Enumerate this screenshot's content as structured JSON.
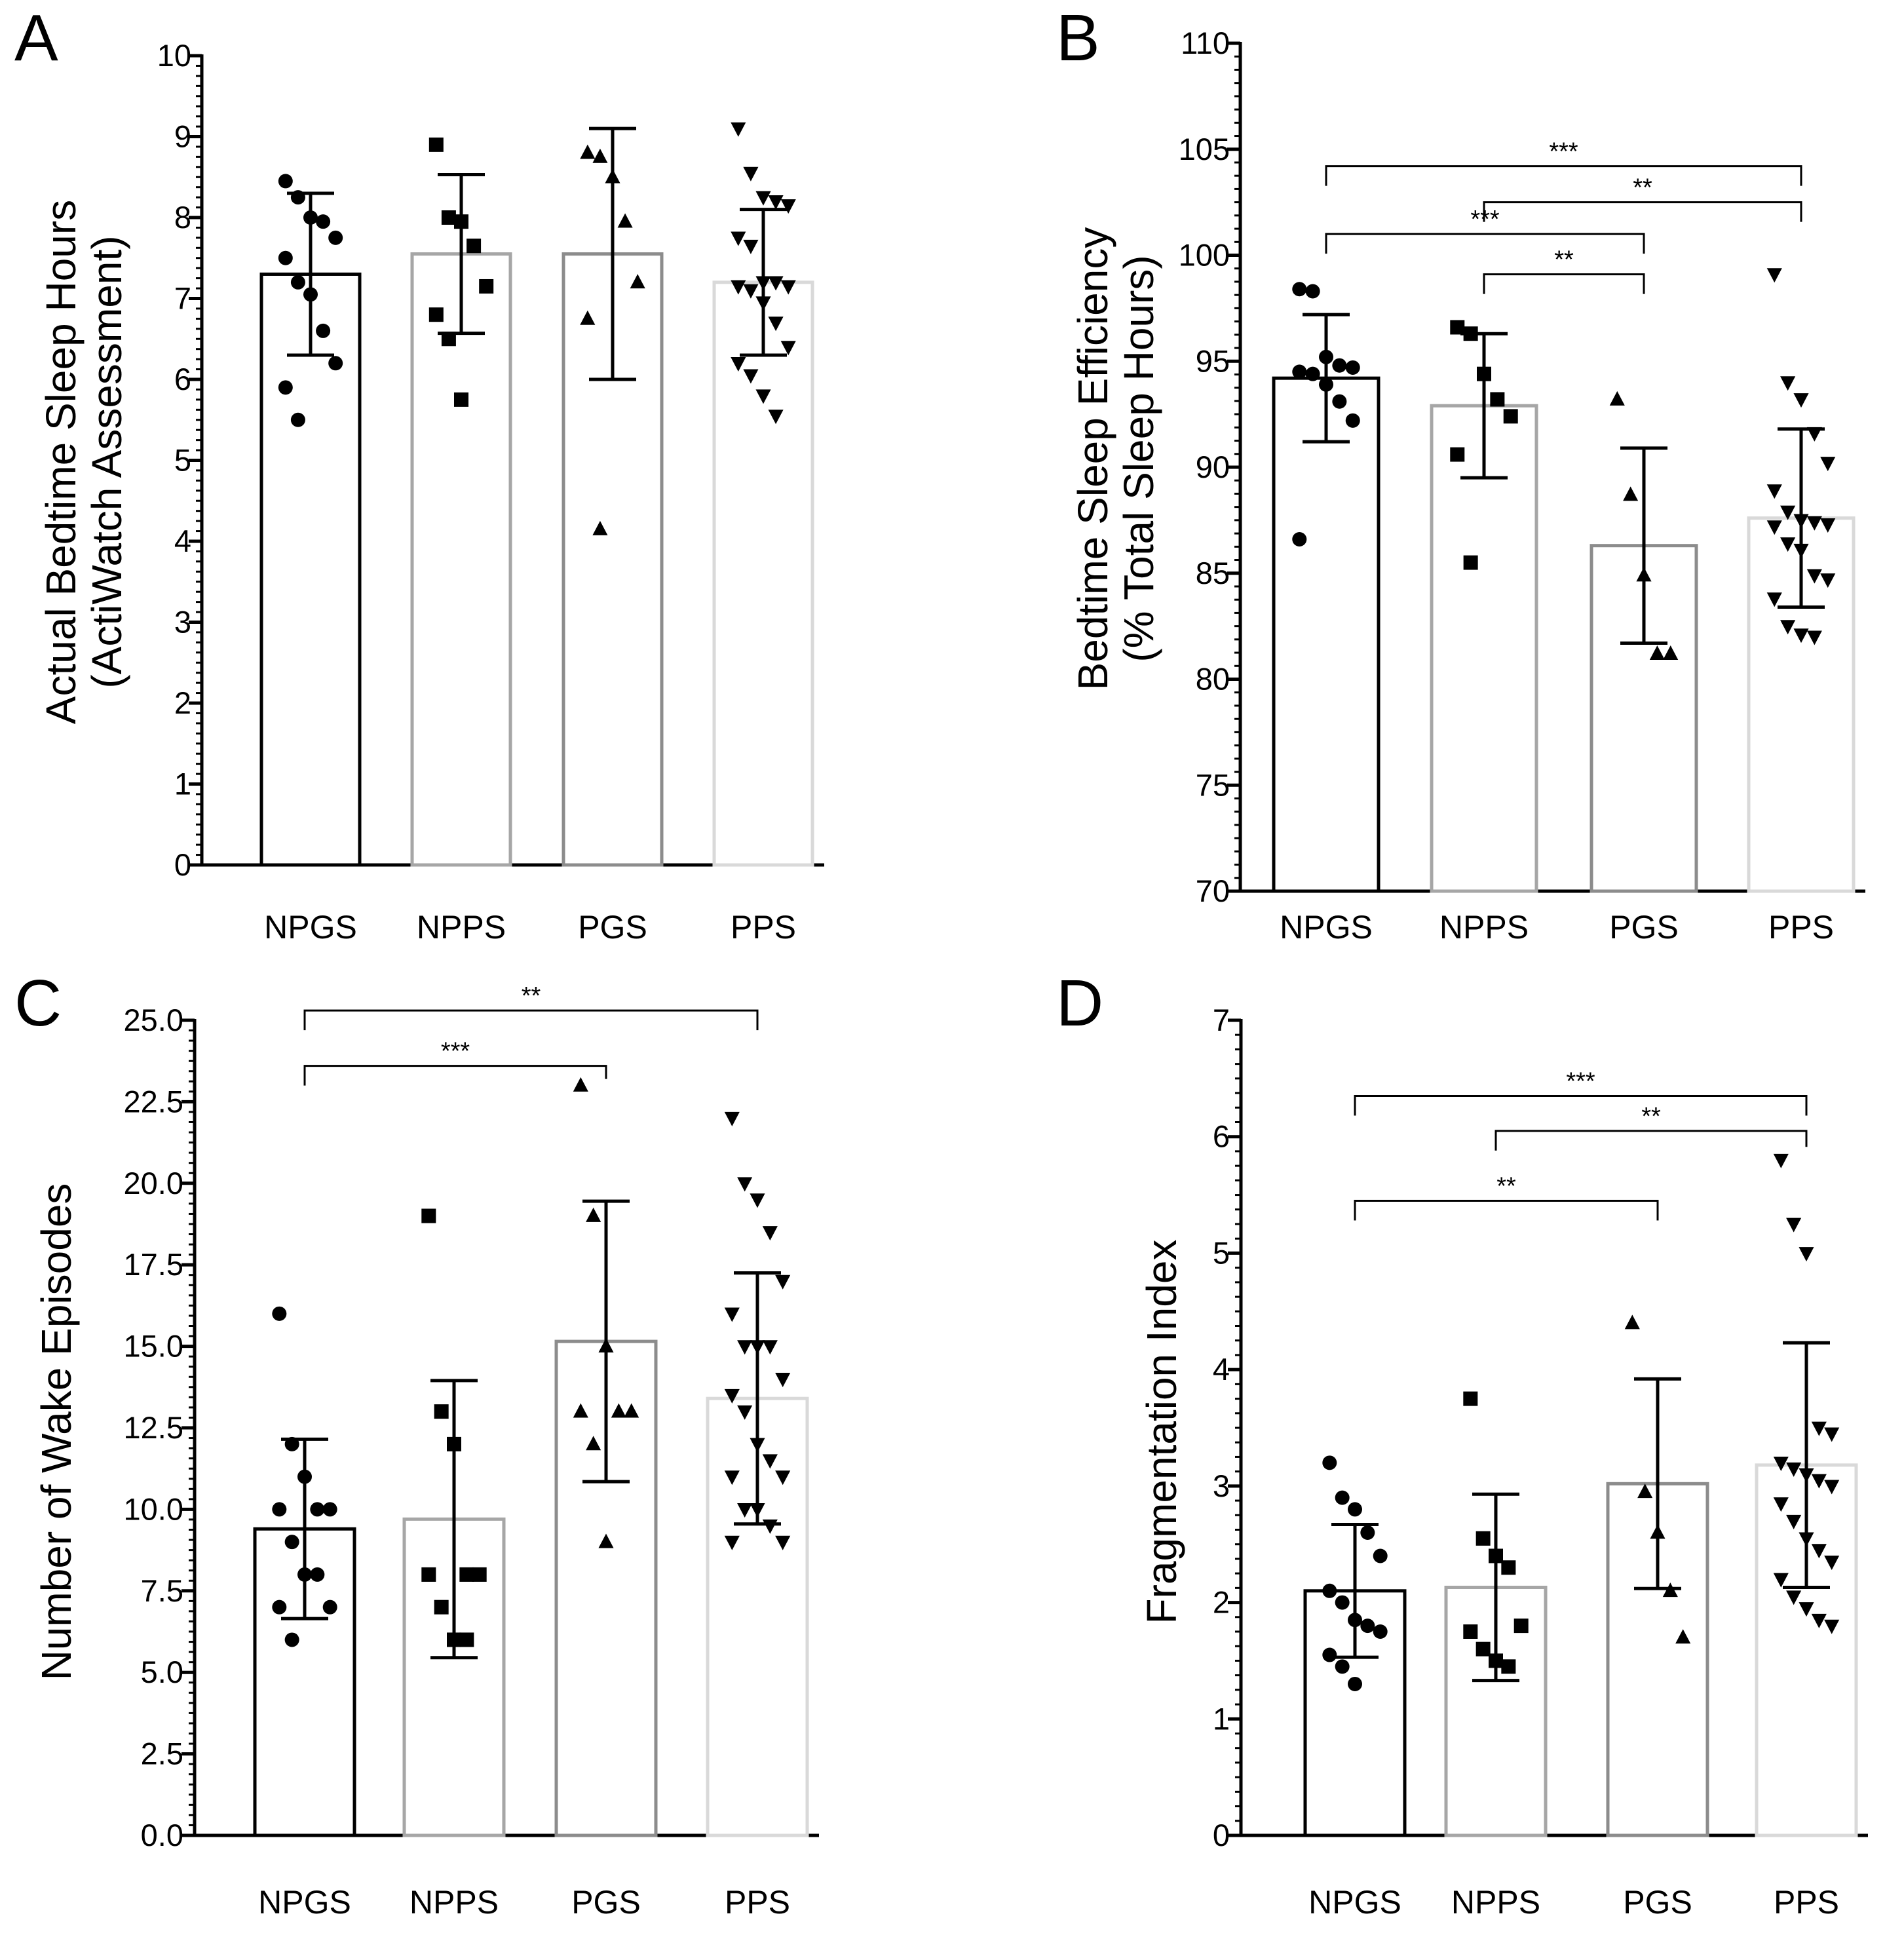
{
  "figure": {
    "groups": [
      "NPGS",
      "NPPS",
      "PGS",
      "PPS"
    ],
    "colors": {
      "NPGS": "#000000",
      "NPPS": "#a6a6a6",
      "PGS": "#8c8c8c",
      "PPS": "#d9d9d9",
      "points": "#000000"
    }
  },
  "chart_data": [
    {
      "panel": "A",
      "type": "bar",
      "title": "",
      "ylabel_line1": "Actual Bedtime Sleep Hours",
      "ylabel_line2": "(ActiWatch Assessment)",
      "xlabel": "",
      "categories": [
        "NPGS",
        "NPPS",
        "PGS",
        "PPS"
      ],
      "ylim": [
        0,
        10
      ],
      "yticks": [
        0,
        1,
        2,
        3,
        4,
        5,
        6,
        7,
        8,
        9,
        10
      ],
      "ytick_labels": [
        "0",
        "1",
        "2",
        "3",
        "4",
        "5",
        "6",
        "7",
        "8",
        "9",
        "10"
      ],
      "means": [
        7.3,
        7.55,
        7.55,
        7.2
      ],
      "sd": [
        1.0,
        0.98,
        1.55,
        0.9
      ],
      "points": [
        [
          8.45,
          8.25,
          8.0,
          7.95,
          7.75,
          7.5,
          7.2,
          7.05,
          6.6,
          6.2,
          5.9,
          5.5
        ],
        [
          8.9,
          8.0,
          7.95,
          7.65,
          7.15,
          6.8,
          6.5,
          5.75
        ],
        [
          8.8,
          8.75,
          8.5,
          7.95,
          7.2,
          6.75,
          4.15
        ],
        [
          9.1,
          8.55,
          8.25,
          8.2,
          8.15,
          7.75,
          7.65,
          7.2,
          7.2,
          7.15,
          7.15,
          7.1,
          6.95,
          6.7,
          6.4,
          6.2,
          6.05,
          5.8,
          5.55
        ]
      ],
      "markers": [
        "circle",
        "square",
        "triangle-up",
        "triangle-down"
      ],
      "significance": []
    },
    {
      "panel": "B",
      "type": "bar",
      "title": "",
      "ylabel_line1": "Bedtime Sleep Efficiency",
      "ylabel_line2": "(% Total Sleep Hours)",
      "xlabel": "",
      "categories": [
        "NPGS",
        "NPPS",
        "PGS",
        "PPS"
      ],
      "ylim": [
        70,
        110
      ],
      "yticks": [
        70,
        75,
        80,
        85,
        90,
        95,
        100,
        105,
        110
      ],
      "ytick_labels": [
        "70",
        "75",
        "80",
        "85",
        "90",
        "95",
        "100",
        "105",
        "110"
      ],
      "means": [
        94.2,
        92.9,
        86.3,
        87.6
      ],
      "sd": [
        3.0,
        3.4,
        4.6,
        4.2
      ],
      "points": [
        [
          98.4,
          98.3,
          95.2,
          94.8,
          94.7,
          94.5,
          94.4,
          93.9,
          93.1,
          92.2,
          86.6
        ],
        [
          96.6,
          96.3,
          94.4,
          93.2,
          92.4,
          90.6,
          85.5
        ],
        [
          93.2,
          88.7,
          84.9,
          81.2,
          81.2
        ],
        [
          99.1,
          94.0,
          93.2,
          91.6,
          90.2,
          88.9,
          87.9,
          87.5,
          87.4,
          87.3,
          87.2,
          86.4,
          86.1,
          84.9,
          84.7,
          83.8,
          82.5,
          82.1,
          82.0
        ]
      ],
      "markers": [
        "circle",
        "square",
        "triangle-up",
        "triangle-down"
      ],
      "significance": [
        {
          "from": 0,
          "to": 3,
          "label": "***",
          "y": 104.2
        },
        {
          "from": 1,
          "to": 3,
          "label": "**",
          "y": 102.5
        },
        {
          "from": 0,
          "to": 2,
          "label": "***",
          "y": 101.0
        },
        {
          "from": 1,
          "to": 2,
          "label": "**",
          "y": 99.1
        }
      ]
    },
    {
      "panel": "C",
      "type": "bar",
      "title": "",
      "ylabel_line1": "Number of Wake Episodes",
      "ylabel_line2": "",
      "xlabel": "",
      "categories": [
        "NPGS",
        "NPPS",
        "PGS",
        "PPS"
      ],
      "ylim": [
        0,
        25
      ],
      "yticks": [
        0,
        2.5,
        5,
        7.5,
        10,
        12.5,
        15,
        17.5,
        20,
        22.5,
        25
      ],
      "ytick_labels": [
        "0.0",
        "2.5",
        "5.0",
        "7.5",
        "10.0",
        "12.5",
        "15.0",
        "17.5",
        "20.0",
        "22.5",
        "25.0"
      ],
      "means": [
        9.4,
        9.7,
        15.15,
        13.4
      ],
      "sd": [
        2.75,
        4.25,
        4.3,
        3.85
      ],
      "points": [
        [
          16,
          12,
          11,
          10,
          10,
          10,
          9,
          8,
          8,
          7,
          7,
          6
        ],
        [
          19,
          13,
          12,
          8,
          8,
          8,
          7,
          6,
          6
        ],
        [
          23,
          19,
          15,
          13,
          13,
          13,
          12,
          9
        ],
        [
          22,
          20,
          19.5,
          18.5,
          17,
          16,
          15,
          15,
          15,
          14,
          13.5,
          13,
          12,
          11.5,
          11,
          11,
          10,
          10,
          9.5,
          9,
          9
        ]
      ],
      "markers": [
        "circle",
        "square",
        "triangle-up",
        "triangle-down"
      ],
      "significance": [
        {
          "from": 0,
          "to": 3,
          "label": "**",
          "y": 25.3
        },
        {
          "from": 0,
          "to": 2,
          "label": "***",
          "y": 23.6
        }
      ]
    },
    {
      "panel": "D",
      "type": "bar",
      "title": "",
      "ylabel_line1": "Fragmentation Index",
      "ylabel_line2": "",
      "xlabel": "",
      "categories": [
        "NPGS",
        "NPPS",
        "PGS",
        "PPS"
      ],
      "ylim": [
        0,
        7
      ],
      "yticks": [
        0,
        1,
        2,
        3,
        4,
        5,
        6,
        7
      ],
      "ytick_labels": [
        "0",
        "1",
        "2",
        "3",
        "4",
        "5",
        "6",
        "7"
      ],
      "means": [
        2.1,
        2.13,
        3.02,
        3.18
      ],
      "sd": [
        0.57,
        0.8,
        0.9,
        1.05
      ],
      "points": [
        [
          3.2,
          2.9,
          2.8,
          2.6,
          2.4,
          2.1,
          2.0,
          1.85,
          1.8,
          1.75,
          1.55,
          1.45,
          1.3
        ],
        [
          3.75,
          2.55,
          2.4,
          2.3,
          1.8,
          1.75,
          1.6,
          1.5,
          1.45
        ],
        [
          4.4,
          2.95,
          2.6,
          2.1,
          1.7
        ],
        [
          5.8,
          5.25,
          5.0,
          3.5,
          3.45,
          3.2,
          3.15,
          3.1,
          3.05,
          3.0,
          2.85,
          2.7,
          2.55,
          2.45,
          2.35,
          2.2,
          2.05,
          1.95,
          1.85,
          1.8
        ]
      ],
      "markers": [
        "circle",
        "square",
        "triangle-up",
        "triangle-down"
      ],
      "significance": [
        {
          "from": 0,
          "to": 3,
          "label": "***",
          "y": 6.35
        },
        {
          "from": 1,
          "to": 3,
          "label": "**",
          "y": 6.05
        },
        {
          "from": 0,
          "to": 2,
          "label": "**",
          "y": 5.45
        }
      ]
    }
  ]
}
